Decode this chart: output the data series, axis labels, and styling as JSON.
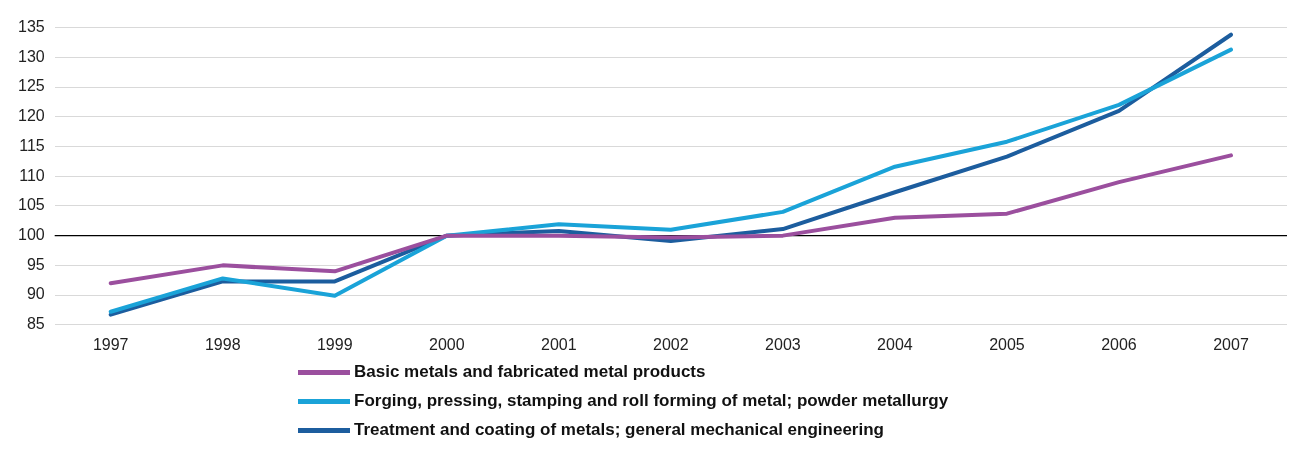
{
  "chart_data": {
    "type": "line",
    "categories": [
      "1997",
      "1998",
      "1999",
      "2000",
      "2001",
      "2002",
      "2003",
      "2004",
      "2005",
      "2006",
      "2007"
    ],
    "series": [
      {
        "name": "Basic metals and fabricated metal products",
        "color": "#9b4f9e",
        "values": [
          92,
          95,
          94,
          100,
          100,
          99.7,
          100,
          103,
          103.7,
          109,
          113.5
        ]
      },
      {
        "name": "Forging, pressing, stamping and roll forming of metal; powder metallurgy",
        "color": "#1aa3d8",
        "values": [
          87.2,
          92.8,
          89.9,
          100,
          101.9,
          101,
          104,
          111.6,
          115.8,
          122,
          131.3
        ]
      },
      {
        "name": "Treatment and coating of metals; general mechanical engineering",
        "color": "#1c5d9e",
        "values": [
          86.7,
          92.3,
          92.3,
          100,
          100.8,
          99.1,
          101.1,
          107.3,
          113.3,
          121,
          133.8
        ]
      }
    ],
    "ylim": [
      85,
      135
    ],
    "yticks": [
      85,
      90,
      95,
      100,
      105,
      110,
      115,
      120,
      125,
      130,
      135
    ],
    "grid": "y",
    "legend": "bottom",
    "marker": "none",
    "line_style": "solid",
    "ref_lines": [
      {
        "axis": "y",
        "value": 100,
        "color": "#000000"
      }
    ]
  }
}
